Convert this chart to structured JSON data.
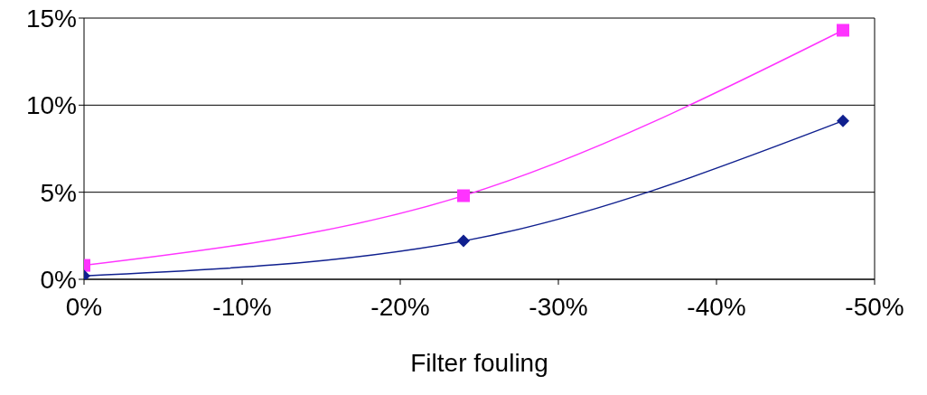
{
  "chart_data": {
    "type": "line",
    "xlabel": "Filter fouling",
    "xlim": [
      0,
      -50
    ],
    "xticks": [
      {
        "value": 0,
        "label": "0%"
      },
      {
        "value": -10,
        "label": "-10%"
      },
      {
        "value": -20,
        "label": "-20%"
      },
      {
        "value": -30,
        "label": "-30%"
      },
      {
        "value": -40,
        "label": "-40%"
      },
      {
        "value": -50,
        "label": "-50%"
      }
    ],
    "ylim": [
      0,
      15
    ],
    "yticks": [
      {
        "value": 0,
        "label": "0%"
      },
      {
        "value": 5,
        "label": "5%"
      },
      {
        "value": 10,
        "label": "10%"
      },
      {
        "value": 15,
        "label": "15%"
      }
    ],
    "grid": "y",
    "series": [
      {
        "color": "#ff33ff",
        "marker": "square",
        "x": [
          0,
          -24,
          -48
        ],
        "values": [
          0.8,
          4.8,
          14.3
        ]
      },
      {
        "color": "#10208f",
        "marker": "diamond",
        "x": [
          0,
          -24,
          -48
        ],
        "values": [
          0.2,
          2.2,
          9.1
        ]
      }
    ]
  }
}
